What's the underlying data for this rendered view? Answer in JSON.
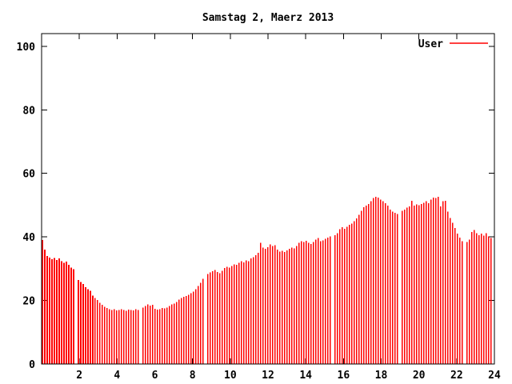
{
  "title": "Samstag 2, Maerz 2013",
  "legend": {
    "label": "User",
    "position": "top-right"
  },
  "colors": {
    "series": "#ff0000",
    "axis": "#000000",
    "text": "#000000",
    "background": "#ffffff"
  },
  "chart_data": {
    "type": "bar",
    "style": "impulses",
    "title": "Samstag 2, Maerz 2013",
    "xlabel": "",
    "ylabel": "",
    "grid": false,
    "legend_position": "top-right",
    "x_axis": {
      "min": 0,
      "max": 24,
      "unit": "hour of day",
      "ticks": [
        2,
        4,
        6,
        8,
        10,
        12,
        14,
        16,
        18,
        20,
        22,
        24
      ]
    },
    "y_axis": {
      "min": 0,
      "max": 104,
      "ticks": [
        0,
        20,
        40,
        60,
        80,
        100
      ]
    },
    "series": [
      {
        "name": "User",
        "color": "#ff0000",
        "t_start_hours": 0.042,
        "t_step_hours": 0.12712,
        "gap_note": "zero values are data gaps (white columns)",
        "values": [
          39,
          36,
          34,
          33.5,
          33,
          33.4,
          32.8,
          33.2,
          32.4,
          31.8,
          32.2,
          31.2,
          30.4,
          29.8,
          0,
          26.5,
          25.8,
          25.2,
          24.2,
          23.5,
          23,
          21.5,
          20.8,
          20.2,
          19.3,
          18.6,
          18,
          17.6,
          17.3,
          17,
          17.2,
          16.9,
          17,
          17.3,
          17,
          16.8,
          17.1,
          17,
          16.9,
          17.2,
          17,
          0,
          17.8,
          18.3,
          18.8,
          18.4,
          18.6,
          17.4,
          17.1,
          17.3,
          17.6,
          17.5,
          17.8,
          18.3,
          18.8,
          19,
          19.5,
          20.3,
          20.8,
          21.2,
          21.4,
          21.8,
          22.3,
          22.8,
          23.6,
          24.5,
          25.6,
          26.8,
          0,
          28.3,
          28.8,
          29.2,
          29.6,
          29,
          28.6,
          29.4,
          30.2,
          30.6,
          30.3,
          30.8,
          31.4,
          31.2,
          31.8,
          32.3,
          32,
          32.6,
          32.4,
          33.2,
          33.6,
          34.2,
          35,
          38.2,
          36.6,
          36.2,
          36.8,
          37.6,
          37.2,
          37.4,
          36,
          35.4,
          35.6,
          35.2,
          35.8,
          36.2,
          36.6,
          36.4,
          37.2,
          38.2,
          38.6,
          38.4,
          38.8,
          38.2,
          37.8,
          38.4,
          39.2,
          39.6,
          38.6,
          38.9,
          39.4,
          39.8,
          40.2,
          0,
          40.6,
          41.2,
          42.4,
          43,
          42.6,
          43.2,
          43.8,
          44.2,
          45,
          45.8,
          47,
          48.2,
          49.4,
          49.8,
          50.4,
          51.2,
          52.2,
          52.6,
          52.4,
          51.8,
          51.2,
          50.6,
          49.8,
          48.6,
          48,
          47.6,
          47.2,
          0,
          48.2,
          48.6,
          49.2,
          49.6,
          51.4,
          49.8,
          50.2,
          50,
          50.4,
          50.8,
          51.2,
          50.6,
          51.8,
          52.4,
          52.2,
          52.6,
          49.6,
          51.2,
          51.4,
          48,
          46,
          44.4,
          42.8,
          41,
          39.8,
          38.6,
          0,
          38.4,
          39.2,
          41.6,
          42.2,
          41.2,
          40.6,
          41,
          40.4,
          41.2,
          40.2,
          39.6
        ]
      }
    ]
  }
}
